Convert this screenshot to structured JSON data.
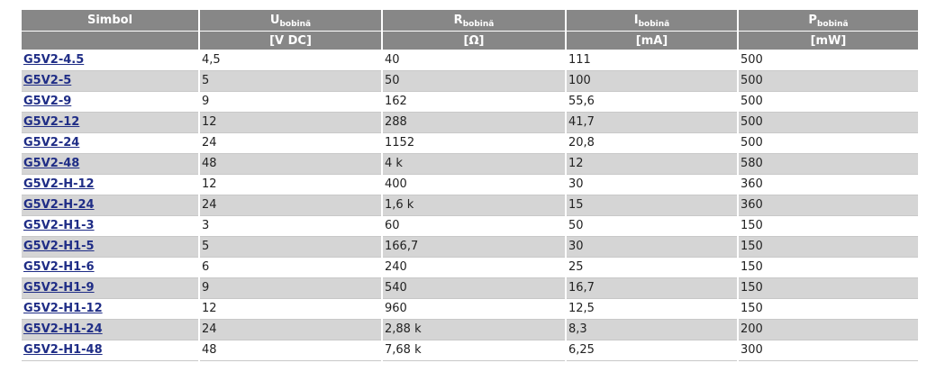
{
  "header": {
    "symbol": "Simbol",
    "u_main": "U",
    "u_sub": "bobină",
    "r_main": "R",
    "r_sub": "bobină",
    "i_main": "I",
    "i_sub": "bobină",
    "p_main": "P",
    "p_sub": "bobină",
    "u_unit": "[V DC]",
    "r_unit": "[Ω]",
    "i_unit": "[mA]",
    "p_unit": "[mW]"
  },
  "rows": [
    {
      "symbol": "G5V2-4.5",
      "u": "4,5",
      "r": "40",
      "i": "111",
      "p": "500"
    },
    {
      "symbol": "G5V2-5",
      "u": "5",
      "r": "50",
      "i": "100",
      "p": "500"
    },
    {
      "symbol": "G5V2-9",
      "u": "9",
      "r": "162",
      "i": "55,6",
      "p": "500"
    },
    {
      "symbol": "G5V2-12",
      "u": "12",
      "r": "288",
      "i": "41,7",
      "p": "500"
    },
    {
      "symbol": "G5V2-24",
      "u": "24",
      "r": "1152",
      "i": "20,8",
      "p": "500"
    },
    {
      "symbol": "G5V2-48",
      "u": "48",
      "r": "4 k",
      "i": "12",
      "p": "580"
    },
    {
      "symbol": "G5V2-H-12",
      "u": "12",
      "r": "400",
      "i": "30",
      "p": "360"
    },
    {
      "symbol": "G5V2-H-24",
      "u": "24",
      "r": "1,6 k",
      "i": "15",
      "p": "360"
    },
    {
      "symbol": "G5V2-H1-3",
      "u": "3",
      "r": "60",
      "i": "50",
      "p": "150"
    },
    {
      "symbol": "G5V2-H1-5",
      "u": "5",
      "r": "166,7",
      "i": "30",
      "p": "150"
    },
    {
      "symbol": "G5V2-H1-6",
      "u": "6",
      "r": "240",
      "i": "25",
      "p": "150"
    },
    {
      "symbol": "G5V2-H1-9",
      "u": "9",
      "r": "540",
      "i": "16,7",
      "p": "150"
    },
    {
      "symbol": "G5V2-H1-12",
      "u": "12",
      "r": "960",
      "i": "12,5",
      "p": "150"
    },
    {
      "symbol": "G5V2-H1-24",
      "u": "24",
      "r": "2,88 k",
      "i": "8,3",
      "p": "200"
    },
    {
      "symbol": "G5V2-H1-48",
      "u": "48",
      "r": "7,68 k",
      "i": "6,25",
      "p": "300"
    }
  ]
}
